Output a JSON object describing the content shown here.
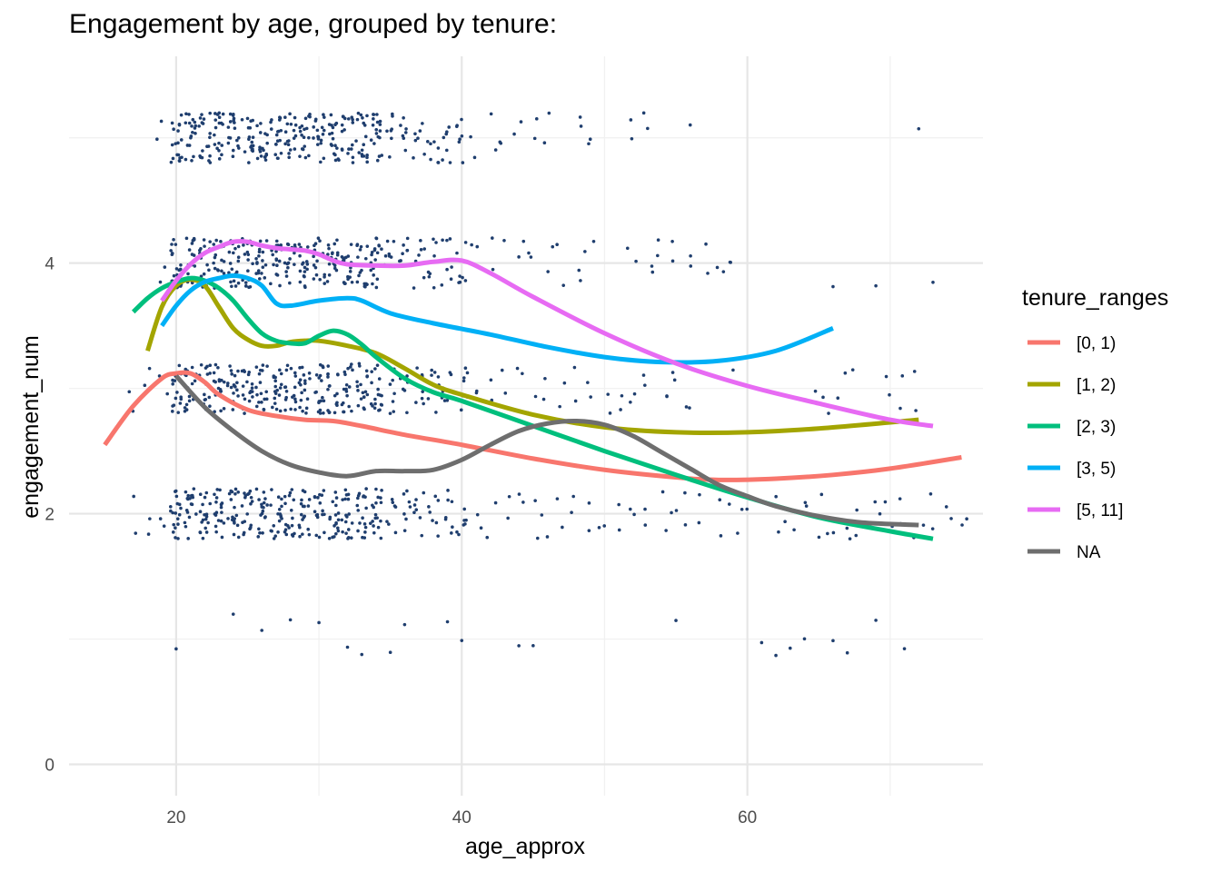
{
  "chart_data": {
    "type": "scatter",
    "title": "Engagement by age, grouped by tenure:",
    "xlabel": "age_approx",
    "ylabel": "engagement_num",
    "xlim": [
      12.5,
      76.5
    ],
    "ylim": [
      -0.25,
      5.65
    ],
    "x_ticks": [
      20,
      40,
      60
    ],
    "y_ticks": [
      0,
      2,
      4
    ],
    "x_minor": [
      30,
      50,
      70
    ],
    "y_minor": [
      1,
      3,
      5
    ],
    "grid": true,
    "legend": {
      "title": "tenure_ranges",
      "placement": "right"
    },
    "points_color": "#1f3e6e",
    "points": {
      "description_levels": [
        1,
        2,
        3,
        4,
        5
      ],
      "jitter": 0.2,
      "level_x_ranges": {
        "1": [
          [
            20,
            20
          ],
          [
            24,
            24
          ],
          [
            26,
            26
          ],
          [
            28,
            28
          ],
          [
            30,
            30
          ],
          [
            32,
            32
          ],
          [
            33,
            33
          ],
          [
            35,
            35
          ],
          [
            36,
            36
          ],
          [
            39,
            39
          ],
          [
            40,
            40
          ],
          [
            44,
            44
          ],
          [
            45,
            45
          ],
          [
            55,
            55
          ],
          [
            61,
            61
          ],
          [
            62,
            62
          ],
          [
            63,
            63
          ],
          [
            64,
            64
          ],
          [
            66,
            66
          ],
          [
            67,
            67
          ],
          [
            69,
            69
          ],
          [
            71,
            71
          ]
        ],
        "2": [
          [
            17,
            60
          ],
          [
            62,
            75
          ]
        ],
        "3": [
          [
            17,
            56
          ],
          [
            59,
            59
          ],
          [
            65,
            67
          ],
          [
            70,
            72
          ]
        ],
        "4": [
          [
            19,
            41
          ],
          [
            42,
            49
          ],
          [
            52,
            59
          ],
          [
            66,
            66
          ],
          [
            69,
            69
          ],
          [
            73,
            73
          ]
        ],
        "5": [
          [
            19,
            37
          ],
          [
            38,
            46
          ],
          [
            48,
            49
          ],
          [
            52,
            53
          ],
          [
            56,
            56
          ],
          [
            72,
            72
          ]
        ]
      }
    },
    "series": [
      {
        "name": "[0, 1)",
        "color": "#f8766d",
        "x": [
          15,
          17,
          19,
          20,
          21,
          22,
          23,
          25,
          27,
          29,
          31,
          33,
          36,
          40,
          45,
          50,
          55,
          58,
          62,
          66,
          70,
          75
        ],
        "y": [
          2.55,
          2.86,
          3.08,
          3.12,
          3.12,
          3.05,
          2.95,
          2.83,
          2.78,
          2.75,
          2.74,
          2.7,
          2.63,
          2.55,
          2.44,
          2.35,
          2.29,
          2.27,
          2.28,
          2.31,
          2.36,
          2.45
        ]
      },
      {
        "name": "[1, 2)",
        "color": "#a3a500",
        "x": [
          18,
          19,
          20,
          21,
          22,
          23,
          24,
          25,
          26,
          27,
          28,
          29,
          30,
          32,
          34,
          36,
          38,
          40,
          45,
          50,
          55,
          60,
          65,
          72
        ],
        "y": [
          3.3,
          3.65,
          3.82,
          3.87,
          3.82,
          3.65,
          3.48,
          3.39,
          3.34,
          3.34,
          3.37,
          3.38,
          3.38,
          3.34,
          3.28,
          3.16,
          3.03,
          2.95,
          2.79,
          2.69,
          2.65,
          2.65,
          2.68,
          2.75
        ]
      },
      {
        "name": "[2, 3)",
        "color": "#00bf7d",
        "x": [
          17,
          18,
          19,
          20,
          21,
          22,
          23,
          24,
          25,
          26,
          27,
          28,
          29,
          30,
          31,
          32,
          33,
          34,
          36,
          38,
          40,
          45,
          50,
          55,
          60,
          65,
          70,
          73
        ],
        "y": [
          3.61,
          3.72,
          3.8,
          3.85,
          3.88,
          3.86,
          3.8,
          3.7,
          3.56,
          3.44,
          3.38,
          3.36,
          3.36,
          3.42,
          3.46,
          3.43,
          3.35,
          3.25,
          3.08,
          2.97,
          2.9,
          2.7,
          2.5,
          2.31,
          2.13,
          1.97,
          1.86,
          1.8
        ]
      },
      {
        "name": "[3, 5)",
        "color": "#00b0f6",
        "x": [
          19,
          20,
          21,
          22,
          23,
          24,
          25,
          26,
          27,
          28,
          30,
          32,
          33,
          35,
          38,
          42,
          46,
          50,
          54,
          58,
          62,
          66
        ],
        "y": [
          3.5,
          3.66,
          3.78,
          3.85,
          3.88,
          3.9,
          3.88,
          3.82,
          3.68,
          3.66,
          3.7,
          3.72,
          3.7,
          3.6,
          3.52,
          3.43,
          3.33,
          3.25,
          3.21,
          3.22,
          3.3,
          3.48
        ]
      },
      {
        "name": "[5, 11]",
        "color": "#e76bf3",
        "x": [
          19,
          20,
          21,
          22,
          23,
          24,
          25,
          26,
          27,
          28,
          29,
          30,
          31,
          32,
          34,
          36,
          38,
          40,
          42,
          45,
          50,
          55,
          60,
          65,
          70,
          73
        ],
        "y": [
          3.7,
          3.86,
          3.99,
          4.08,
          4.13,
          4.17,
          4.17,
          4.14,
          4.12,
          4.11,
          4.1,
          4.07,
          4.02,
          3.99,
          3.98,
          3.98,
          4.01,
          4.02,
          3.92,
          3.73,
          3.44,
          3.2,
          3.02,
          2.88,
          2.75,
          2.7
        ]
      },
      {
        "name": "NA",
        "color": "#6e6e6e",
        "x": [
          20,
          22,
          24,
          26,
          28,
          30,
          32,
          34,
          36,
          38,
          40,
          42,
          44,
          46,
          48,
          50,
          52,
          54,
          56,
          58,
          60,
          62,
          65,
          68,
          72
        ],
        "y": [
          3.1,
          2.85,
          2.66,
          2.5,
          2.39,
          2.33,
          2.3,
          2.34,
          2.34,
          2.35,
          2.43,
          2.55,
          2.66,
          2.72,
          2.74,
          2.71,
          2.62,
          2.49,
          2.36,
          2.23,
          2.14,
          2.06,
          1.98,
          1.93,
          1.91
        ]
      }
    ]
  }
}
